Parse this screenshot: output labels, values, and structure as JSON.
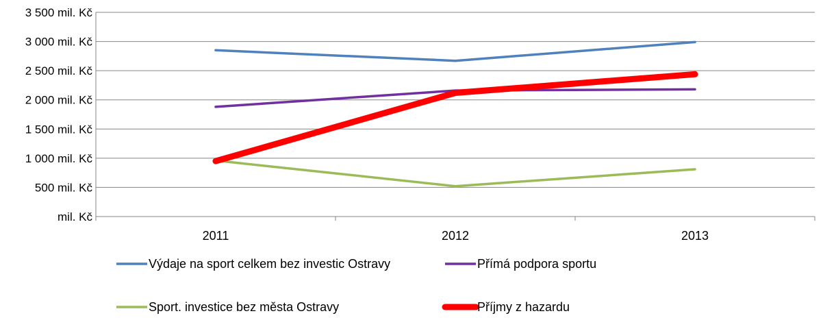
{
  "chart_data": {
    "type": "line",
    "title": "",
    "xlabel": "",
    "ylabel": "",
    "categories": [
      "2011",
      "2012",
      "2013"
    ],
    "y_ticks": [
      {
        "value": 0,
        "label": "mil. Kč"
      },
      {
        "value": 500,
        "label": "500 mil. Kč"
      },
      {
        "value": 1000,
        "label": "1 000 mil. Kč"
      },
      {
        "value": 1500,
        "label": "1 500 mil. Kč"
      },
      {
        "value": 2000,
        "label": "2 000 mil. Kč"
      },
      {
        "value": 2500,
        "label": "2 500 mil. Kč"
      },
      {
        "value": 3000,
        "label": "3 000 mil. Kč"
      },
      {
        "value": 3500,
        "label": "3 500 mil. Kč"
      }
    ],
    "ylim": [
      0,
      3500
    ],
    "grid": true,
    "legend_position": "bottom",
    "series": [
      {
        "name": "Výdaje na sport celkem bez investic Ostravy",
        "values": [
          2850,
          2670,
          2990
        ],
        "color": "#4f81bd"
      },
      {
        "name": "Přímá podpora sportu",
        "values": [
          1880,
          2160,
          2180
        ],
        "color": "#7030a0"
      },
      {
        "name": "Sport. investice bez města Ostravy",
        "values": [
          960,
          520,
          810
        ],
        "color": "#9bbb59"
      },
      {
        "name": "Příjmy z hazardu",
        "values": [
          950,
          2120,
          2440
        ],
        "color": "#ff0000"
      }
    ]
  }
}
